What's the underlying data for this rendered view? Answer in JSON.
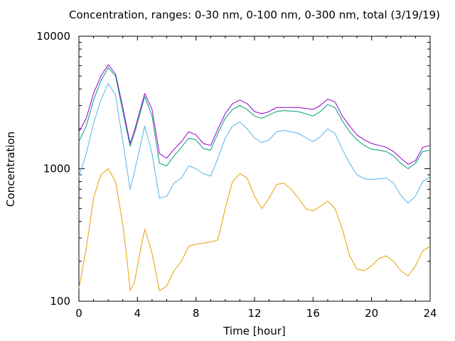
{
  "chart_data": {
    "type": "line",
    "title": "Concentration, ranges: 0-30 nm, 0-100 nm, 0-300 nm, total (3/19/19)",
    "xlabel": "Time [hour]",
    "ylabel": "Concentration",
    "xlim": [
      0,
      24
    ],
    "ylim": [
      100,
      10000
    ],
    "yscale": "log",
    "grid": false,
    "legend": "none",
    "xticks": [
      0,
      4,
      8,
      12,
      16,
      20,
      24
    ],
    "xtick_labels": [
      "0",
      "4",
      "8",
      "12",
      "16",
      "20",
      "24"
    ],
    "yticks": [
      100,
      1000,
      10000
    ],
    "ytick_labels": [
      "100",
      "1000",
      "10000"
    ],
    "series": [
      {
        "color": "#9400d3",
        "points": [
          [
            0,
            1900
          ],
          [
            0.5,
            2400
          ],
          [
            1,
            3700
          ],
          [
            1.5,
            5000
          ],
          [
            2,
            6100
          ],
          [
            2.5,
            5200
          ],
          [
            3,
            2900
          ],
          [
            3.5,
            1550
          ],
          [
            3.8,
            1950
          ],
          [
            4.5,
            3700
          ],
          [
            5,
            2800
          ],
          [
            5.5,
            1300
          ],
          [
            6,
            1200
          ],
          [
            6.5,
            1400
          ],
          [
            7,
            1600
          ],
          [
            7.5,
            1900
          ],
          [
            8,
            1800
          ],
          [
            8.5,
            1550
          ],
          [
            9,
            1500
          ],
          [
            9.5,
            2000
          ],
          [
            10,
            2600
          ],
          [
            10.5,
            3100
          ],
          [
            11,
            3300
          ],
          [
            11.5,
            3100
          ],
          [
            12,
            2700
          ],
          [
            12.5,
            2600
          ],
          [
            13,
            2700
          ],
          [
            13.5,
            2900
          ],
          [
            14,
            2900
          ],
          [
            15,
            2900
          ],
          [
            16,
            2800
          ],
          [
            16.5,
            3000
          ],
          [
            17,
            3350
          ],
          [
            17.5,
            3200
          ],
          [
            18,
            2500
          ],
          [
            18.5,
            2100
          ],
          [
            19,
            1800
          ],
          [
            19.5,
            1650
          ],
          [
            20,
            1550
          ],
          [
            20.5,
            1500
          ],
          [
            21,
            1450
          ],
          [
            21.5,
            1350
          ],
          [
            22,
            1200
          ],
          [
            22.5,
            1080
          ],
          [
            23,
            1150
          ],
          [
            23.5,
            1450
          ],
          [
            24,
            1500
          ]
        ]
      },
      {
        "color": "#009e73",
        "points": [
          [
            0,
            1600
          ],
          [
            0.5,
            2100
          ],
          [
            1,
            3300
          ],
          [
            1.5,
            4600
          ],
          [
            2,
            5800
          ],
          [
            2.5,
            5000
          ],
          [
            3,
            2700
          ],
          [
            3.5,
            1480
          ],
          [
            3.8,
            1850
          ],
          [
            4.5,
            3500
          ],
          [
            5,
            2500
          ],
          [
            5.5,
            1100
          ],
          [
            6,
            1050
          ],
          [
            6.5,
            1250
          ],
          [
            7,
            1450
          ],
          [
            7.5,
            1700
          ],
          [
            8,
            1650
          ],
          [
            8.5,
            1420
          ],
          [
            9,
            1380
          ],
          [
            9.5,
            1850
          ],
          [
            10,
            2400
          ],
          [
            10.5,
            2800
          ],
          [
            11,
            3000
          ],
          [
            11.5,
            2800
          ],
          [
            12,
            2500
          ],
          [
            12.5,
            2400
          ],
          [
            13,
            2550
          ],
          [
            13.5,
            2700
          ],
          [
            14,
            2750
          ],
          [
            15,
            2700
          ],
          [
            16,
            2500
          ],
          [
            16.5,
            2700
          ],
          [
            17,
            3050
          ],
          [
            17.5,
            2900
          ],
          [
            18,
            2300
          ],
          [
            18.5,
            1900
          ],
          [
            19,
            1650
          ],
          [
            19.5,
            1500
          ],
          [
            20,
            1400
          ],
          [
            20.5,
            1380
          ],
          [
            21,
            1350
          ],
          [
            21.5,
            1250
          ],
          [
            22,
            1100
          ],
          [
            22.5,
            1000
          ],
          [
            23,
            1100
          ],
          [
            23.5,
            1350
          ],
          [
            24,
            1380
          ]
        ]
      },
      {
        "color": "#56b4e9",
        "points": [
          [
            0,
            870
          ],
          [
            0.5,
            1300
          ],
          [
            1,
            2200
          ],
          [
            1.5,
            3300
          ],
          [
            2,
            4400
          ],
          [
            2.5,
            3600
          ],
          [
            3,
            1600
          ],
          [
            3.5,
            700
          ],
          [
            3.8,
            950
          ],
          [
            4.5,
            2100
          ],
          [
            5,
            1300
          ],
          [
            5.5,
            600
          ],
          [
            6,
            620
          ],
          [
            6.5,
            780
          ],
          [
            7,
            850
          ],
          [
            7.5,
            1050
          ],
          [
            8,
            1000
          ],
          [
            8.5,
            920
          ],
          [
            9,
            880
          ],
          [
            9.5,
            1200
          ],
          [
            10,
            1700
          ],
          [
            10.5,
            2100
          ],
          [
            11,
            2250
          ],
          [
            11.5,
            2000
          ],
          [
            12,
            1700
          ],
          [
            12.5,
            1580
          ],
          [
            13,
            1650
          ],
          [
            13.5,
            1900
          ],
          [
            14,
            1950
          ],
          [
            15,
            1850
          ],
          [
            16,
            1600
          ],
          [
            16.5,
            1750
          ],
          [
            17,
            2000
          ],
          [
            17.5,
            1850
          ],
          [
            18,
            1400
          ],
          [
            18.5,
            1100
          ],
          [
            19,
            900
          ],
          [
            19.5,
            840
          ],
          [
            20,
            830
          ],
          [
            20.5,
            840
          ],
          [
            21,
            850
          ],
          [
            21.5,
            780
          ],
          [
            22,
            630
          ],
          [
            22.5,
            550
          ],
          [
            23,
            620
          ],
          [
            23.5,
            800
          ],
          [
            24,
            870
          ]
        ]
      },
      {
        "color": "#e69f00",
        "points": [
          [
            0,
            125
          ],
          [
            0.5,
            250
          ],
          [
            1,
            600
          ],
          [
            1.5,
            900
          ],
          [
            2,
            1000
          ],
          [
            2.5,
            800
          ],
          [
            3,
            380
          ],
          [
            3.3,
            200
          ],
          [
            3.5,
            120
          ],
          [
            3.8,
            140
          ],
          [
            4.2,
            240
          ],
          [
            4.5,
            350
          ],
          [
            5,
            230
          ],
          [
            5.5,
            120
          ],
          [
            6,
            130
          ],
          [
            6.5,
            170
          ],
          [
            7,
            200
          ],
          [
            7.5,
            260
          ],
          [
            8,
            270
          ],
          [
            8.5,
            275
          ],
          [
            9,
            280
          ],
          [
            9.5,
            290
          ],
          [
            10,
            500
          ],
          [
            10.5,
            800
          ],
          [
            11,
            920
          ],
          [
            11.5,
            850
          ],
          [
            12,
            620
          ],
          [
            12.5,
            500
          ],
          [
            13,
            600
          ],
          [
            13.5,
            760
          ],
          [
            14,
            780
          ],
          [
            14.5,
            700
          ],
          [
            15,
            600
          ],
          [
            15.5,
            500
          ],
          [
            16,
            480
          ],
          [
            16.5,
            520
          ],
          [
            17,
            570
          ],
          [
            17.5,
            500
          ],
          [
            18,
            350
          ],
          [
            18.5,
            220
          ],
          [
            19,
            175
          ],
          [
            19.5,
            170
          ],
          [
            20,
            185
          ],
          [
            20.5,
            210
          ],
          [
            21,
            220
          ],
          [
            21.5,
            200
          ],
          [
            22,
            170
          ],
          [
            22.5,
            155
          ],
          [
            23,
            185
          ],
          [
            23.5,
            240
          ],
          [
            24,
            260
          ]
        ]
      }
    ]
  }
}
